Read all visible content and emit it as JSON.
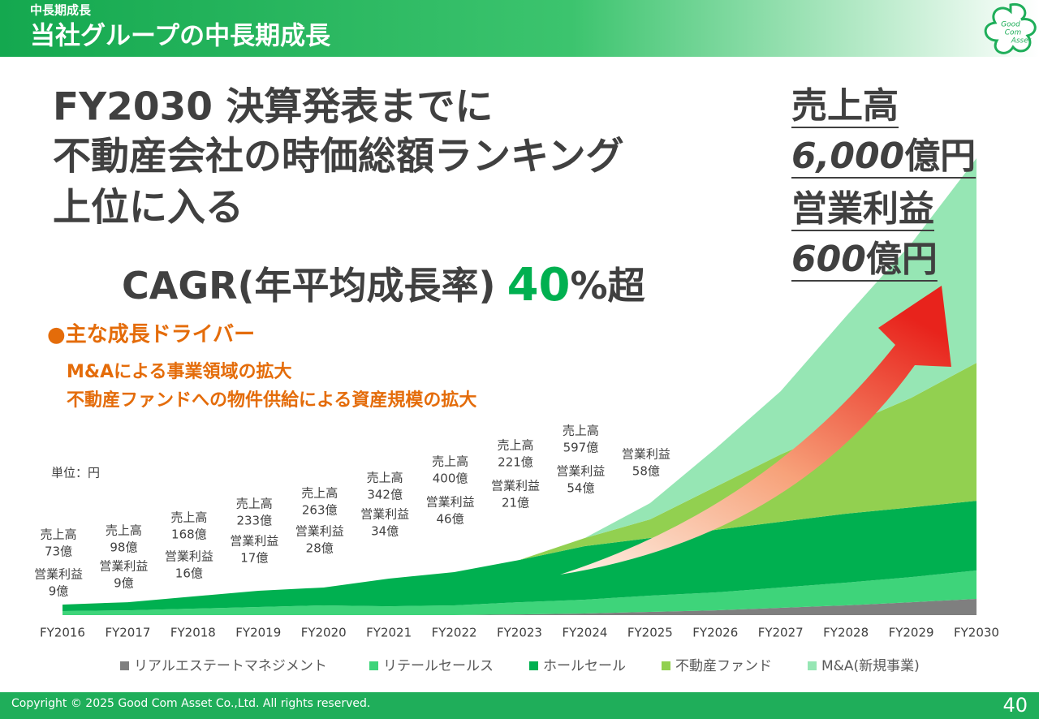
{
  "header": {
    "section": "中長期成長",
    "title": "当社グループの中長期成長",
    "logo": [
      "Good",
      "Com",
      "Asset"
    ]
  },
  "headline": [
    "FY2030 決算発表までに",
    "不動産会社の時価総額ランキング",
    "上位に入る"
  ],
  "cagr": {
    "label": "CAGR(年平均成長率)",
    "value": "40",
    "suffix": "%超"
  },
  "drivers": {
    "title": "●主な成長ドライバー",
    "items": [
      "M&Aによる事業領域の拡大",
      "不動産ファンドへの物件供給による資産規模の拡大"
    ]
  },
  "target": {
    "revenue_label": "売上高",
    "revenue": "6,000",
    "op_label": "営業利益",
    "op": "600",
    "unit": "億円"
  },
  "chart_data": {
    "type": "stacked_area",
    "categories": [
      "FY2016",
      "FY2017",
      "FY2018",
      "FY2019",
      "FY2020",
      "FY2021",
      "FY2022",
      "FY2023",
      "FY2024",
      "FY2025",
      "FY2026",
      "FY2027",
      "FY2028",
      "FY2029",
      "FY2030"
    ],
    "ylim": [
      0,
      4000
    ],
    "unit_note": "単位：円",
    "series": [
      {
        "name": "リアルエステートマネジメント",
        "color": "#7f7f7f",
        "values": [
          0,
          0,
          0,
          0,
          0,
          0,
          0,
          6,
          13,
          26,
          38,
          58,
          77,
          102,
          128
        ]
      },
      {
        "name": "リテールセールス",
        "color": "#3ed47a",
        "values": [
          32,
          38,
          51,
          64,
          77,
          70,
          77,
          96,
          109,
          128,
          141,
          160,
          179,
          198,
          224
        ]
      },
      {
        "name": "ホールセール",
        "color": "#00b050",
        "values": [
          51,
          64,
          96,
          128,
          141,
          218,
          262,
          333,
          422,
          454,
          493,
          518,
          544,
          550,
          550
        ]
      },
      {
        "name": "不動産ファンド",
        "color": "#92d050",
        "values": [
          0,
          0,
          0,
          0,
          0,
          0,
          0,
          0,
          64,
          147,
          339,
          531,
          691,
          864,
          1088
        ]
      },
      {
        "name": "M&A(新規事業)",
        "color": "#96e6b4",
        "values": [
          0,
          0,
          0,
          0,
          0,
          0,
          0,
          0,
          0,
          128,
          301,
          499,
          864,
          1216,
          1613
        ]
      }
    ],
    "annotation_labels": {
      "revenue": "売上高",
      "operating_profit": "営業利益"
    },
    "annotations": [
      {
        "revenue": "73億",
        "operating_profit": "9億"
      },
      {
        "revenue": "98億",
        "operating_profit": "9億"
      },
      {
        "revenue": "168億",
        "operating_profit": "16億"
      },
      {
        "revenue": "233億",
        "operating_profit": "17億"
      },
      {
        "revenue": "263億",
        "operating_profit": "28億"
      },
      {
        "revenue": "342億",
        "operating_profit": "34億"
      },
      {
        "revenue": "400億",
        "operating_profit": "46億"
      },
      {
        "revenue": "221億",
        "operating_profit": "21億"
      },
      {
        "revenue": "597億",
        "operating_profit": "54億"
      },
      {
        "operating_profit": "58億"
      }
    ]
  },
  "footer": {
    "copyright": "Copyright © 2025 Good Com Asset Co.,Ltd. All rights reserved.",
    "page": "40"
  }
}
